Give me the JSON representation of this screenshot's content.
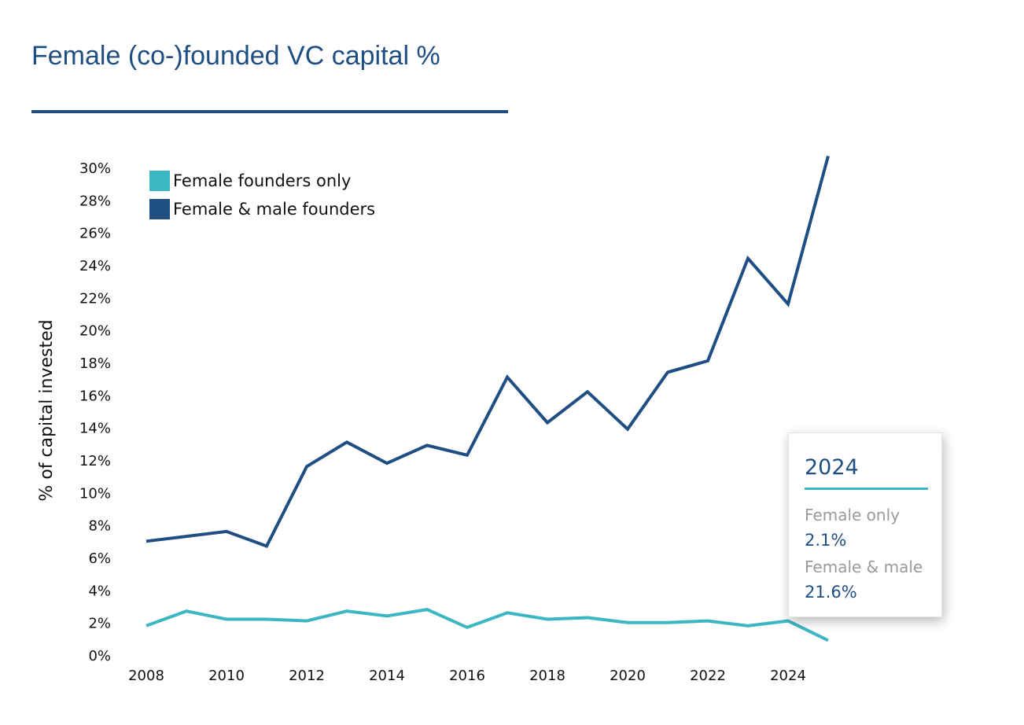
{
  "colors": {
    "title": "#1f4e83",
    "female_only": "#3cb6c3",
    "female_male": "#1f4e83",
    "tooltip_accent": "#3cb6c3"
  },
  "chart_data": {
    "type": "line",
    "title": "Female (co-)founded VC capital %",
    "ylabel": "% of capital invested",
    "xlabel": "",
    "ylim": [
      0,
      30
    ],
    "xlim": [
      2008,
      2025
    ],
    "yticks": [
      "0%",
      "2%",
      "4%",
      "6%",
      "8%",
      "10%",
      "12%",
      "14%",
      "16%",
      "18%",
      "20%",
      "22%",
      "24%",
      "26%",
      "28%",
      "30%"
    ],
    "xticks": [
      "2008",
      "2010",
      "2012",
      "2014",
      "2016",
      "2018",
      "2020",
      "2022",
      "2024"
    ],
    "legend": {
      "position": "top-left",
      "entries": [
        "Female founders only",
        "Female & male founders"
      ]
    },
    "x": [
      2008,
      2009,
      2010,
      2011,
      2012,
      2013,
      2014,
      2015,
      2016,
      2017,
      2018,
      2019,
      2020,
      2021,
      2022,
      2023,
      2024,
      2025
    ],
    "series": [
      {
        "name": "Female founders only",
        "color": "#3cb6c3",
        "values": [
          1.8,
          2.7,
          2.2,
          2.2,
          2.1,
          2.7,
          2.4,
          2.8,
          1.7,
          2.6,
          2.2,
          2.3,
          2.0,
          2.0,
          2.1,
          1.8,
          2.1,
          0.9
        ]
      },
      {
        "name": "Female & male founders",
        "color": "#1f4e83",
        "values": [
          7.0,
          7.3,
          7.6,
          6.7,
          11.6,
          13.1,
          11.8,
          12.9,
          12.3,
          17.1,
          14.3,
          16.2,
          13.9,
          17.4,
          18.1,
          24.4,
          21.6,
          30.7
        ]
      }
    ],
    "tooltip": {
      "title": "2024",
      "female_only_label": "Female only",
      "female_only_value": "2.1%",
      "female_male_label": "Female & male",
      "female_male_value": "21.6%"
    }
  }
}
